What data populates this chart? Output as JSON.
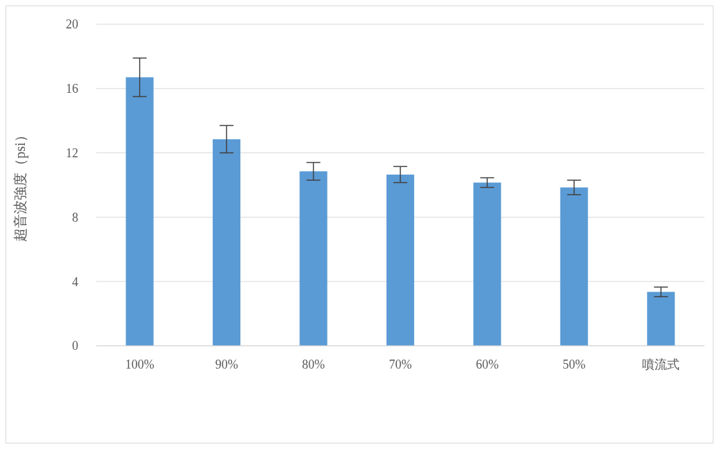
{
  "chart_data": {
    "type": "bar",
    "ylabel": "超音波強度（psi）",
    "categories": [
      "100%",
      "90%",
      "80%",
      "70%",
      "60%",
      "50%",
      "噴流式"
    ],
    "values": [
      16.7,
      12.85,
      10.85,
      10.65,
      10.15,
      9.85,
      3.35
    ],
    "errors": [
      1.2,
      0.85,
      0.55,
      0.5,
      0.3,
      0.45,
      0.3
    ],
    "color": "#5b9bd5",
    "ylim": [
      0,
      20
    ],
    "yticks": [
      0,
      4,
      8,
      12,
      16,
      20
    ],
    "grid": "y"
  }
}
